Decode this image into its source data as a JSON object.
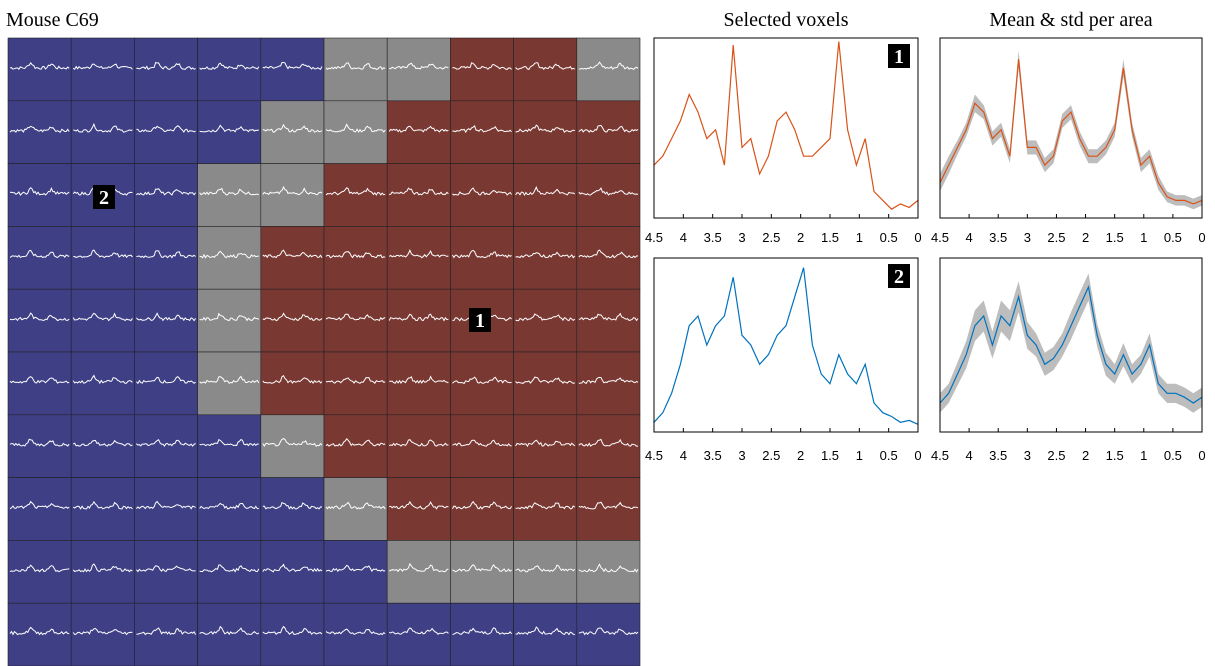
{
  "title": "Mouse C69",
  "voxel_labels": [
    "1",
    "2"
  ],
  "chart_data": [
    {
      "type": "line",
      "title": "Selected voxels",
      "badge": "1",
      "x": [
        4.5,
        4.35,
        4.2,
        4.05,
        3.9,
        3.75,
        3.6,
        3.45,
        3.3,
        3.15,
        3,
        2.85,
        2.7,
        2.55,
        2.4,
        2.25,
        2.1,
        1.95,
        1.8,
        1.65,
        1.5,
        1.35,
        1.2,
        1.05,
        0.9,
        0.75,
        0.6,
        0.45,
        0.3,
        0.15,
        0
      ],
      "series": [
        {
          "color": "#d95319",
          "values": [
            0.3,
            0.35,
            0.45,
            0.55,
            0.7,
            0.6,
            0.45,
            0.5,
            0.3,
            0.98,
            0.4,
            0.45,
            0.25,
            0.35,
            0.55,
            0.6,
            0.5,
            0.35,
            0.35,
            0.4,
            0.45,
            1.0,
            0.5,
            0.3,
            0.45,
            0.15,
            0.1,
            0.05,
            0.08,
            0.06,
            0.1
          ]
        }
      ],
      "xlim": [
        4.5,
        0
      ],
      "ylim": [
        0,
        1.02
      ],
      "xticks": [
        4.5,
        4,
        3.5,
        3,
        2.5,
        2,
        1.5,
        1,
        0.5,
        0
      ]
    },
    {
      "type": "line",
      "badge": "2",
      "x": [
        4.5,
        4.35,
        4.2,
        4.05,
        3.9,
        3.75,
        3.6,
        3.45,
        3.3,
        3.15,
        3,
        2.85,
        2.7,
        2.55,
        2.4,
        2.25,
        2.1,
        1.95,
        1.8,
        1.65,
        1.5,
        1.35,
        1.2,
        1.05,
        0.9,
        0.75,
        0.6,
        0.45,
        0.3,
        0.15,
        0
      ],
      "series": [
        {
          "color": "#0072bd",
          "values": [
            0.05,
            0.1,
            0.2,
            0.35,
            0.55,
            0.6,
            0.45,
            0.55,
            0.6,
            0.8,
            0.5,
            0.45,
            0.35,
            0.4,
            0.5,
            0.55,
            0.7,
            0.85,
            0.45,
            0.3,
            0.25,
            0.4,
            0.3,
            0.25,
            0.35,
            0.15,
            0.1,
            0.08,
            0.05,
            0.06,
            0.04
          ]
        }
      ],
      "xlim": [
        4.5,
        0
      ],
      "ylim": [
        0,
        0.9
      ],
      "xticks": [
        4.5,
        4,
        3.5,
        3,
        2.5,
        2,
        1.5,
        1,
        0.5,
        0
      ]
    },
    {
      "type": "band",
      "title": "Mean & std per area",
      "band_color": "#bdbdbd",
      "x": [
        4.5,
        4.35,
        4.2,
        4.05,
        3.9,
        3.75,
        3.6,
        3.45,
        3.3,
        3.15,
        3,
        2.85,
        2.7,
        2.55,
        2.4,
        2.25,
        2.1,
        1.95,
        1.8,
        1.65,
        1.5,
        1.35,
        1.2,
        1.05,
        0.9,
        0.75,
        0.6,
        0.45,
        0.3,
        0.15,
        0
      ],
      "series": [
        {
          "color": "#d95319",
          "values": [
            0.2,
            0.3,
            0.4,
            0.5,
            0.65,
            0.6,
            0.45,
            0.5,
            0.35,
            0.9,
            0.4,
            0.4,
            0.3,
            0.35,
            0.55,
            0.6,
            0.45,
            0.35,
            0.35,
            0.4,
            0.5,
            0.85,
            0.5,
            0.3,
            0.35,
            0.2,
            0.12,
            0.1,
            0.1,
            0.08,
            0.1
          ],
          "std": [
            0.05,
            0.05,
            0.04,
            0.04,
            0.05,
            0.04,
            0.04,
            0.04,
            0.04,
            0.05,
            0.04,
            0.04,
            0.04,
            0.04,
            0.04,
            0.04,
            0.04,
            0.04,
            0.04,
            0.04,
            0.04,
            0.05,
            0.04,
            0.04,
            0.04,
            0.04,
            0.03,
            0.03,
            0.03,
            0.03,
            0.03
          ]
        }
      ],
      "xlim": [
        4.5,
        0
      ],
      "ylim": [
        0,
        1.02
      ],
      "xticks": [
        4.5,
        4,
        3.5,
        3,
        2.5,
        2,
        1.5,
        1,
        0.5,
        0
      ]
    },
    {
      "type": "band",
      "band_color": "#bdbdbd",
      "x": [
        4.5,
        4.35,
        4.2,
        4.05,
        3.9,
        3.75,
        3.6,
        3.45,
        3.3,
        3.15,
        3,
        2.85,
        2.7,
        2.55,
        2.4,
        2.25,
        2.1,
        1.95,
        1.8,
        1.65,
        1.5,
        1.35,
        1.2,
        1.05,
        0.9,
        0.75,
        0.6,
        0.45,
        0.3,
        0.15,
        0
      ],
      "series": [
        {
          "color": "#0072bd",
          "values": [
            0.15,
            0.2,
            0.3,
            0.4,
            0.55,
            0.6,
            0.45,
            0.6,
            0.55,
            0.7,
            0.5,
            0.45,
            0.35,
            0.38,
            0.45,
            0.55,
            0.65,
            0.75,
            0.5,
            0.35,
            0.3,
            0.4,
            0.3,
            0.35,
            0.45,
            0.25,
            0.2,
            0.2,
            0.18,
            0.15,
            0.18
          ],
          "std": [
            0.05,
            0.05,
            0.06,
            0.07,
            0.08,
            0.08,
            0.07,
            0.08,
            0.08,
            0.08,
            0.07,
            0.06,
            0.06,
            0.06,
            0.06,
            0.07,
            0.07,
            0.07,
            0.06,
            0.06,
            0.05,
            0.06,
            0.05,
            0.05,
            0.06,
            0.05,
            0.05,
            0.05,
            0.05,
            0.05,
            0.05
          ]
        }
      ],
      "xlim": [
        4.5,
        0
      ],
      "ylim": [
        0,
        0.9
      ],
      "xticks": [
        4.5,
        4,
        3.5,
        3,
        2.5,
        2,
        1.5,
        1,
        0.5,
        0
      ]
    }
  ]
}
